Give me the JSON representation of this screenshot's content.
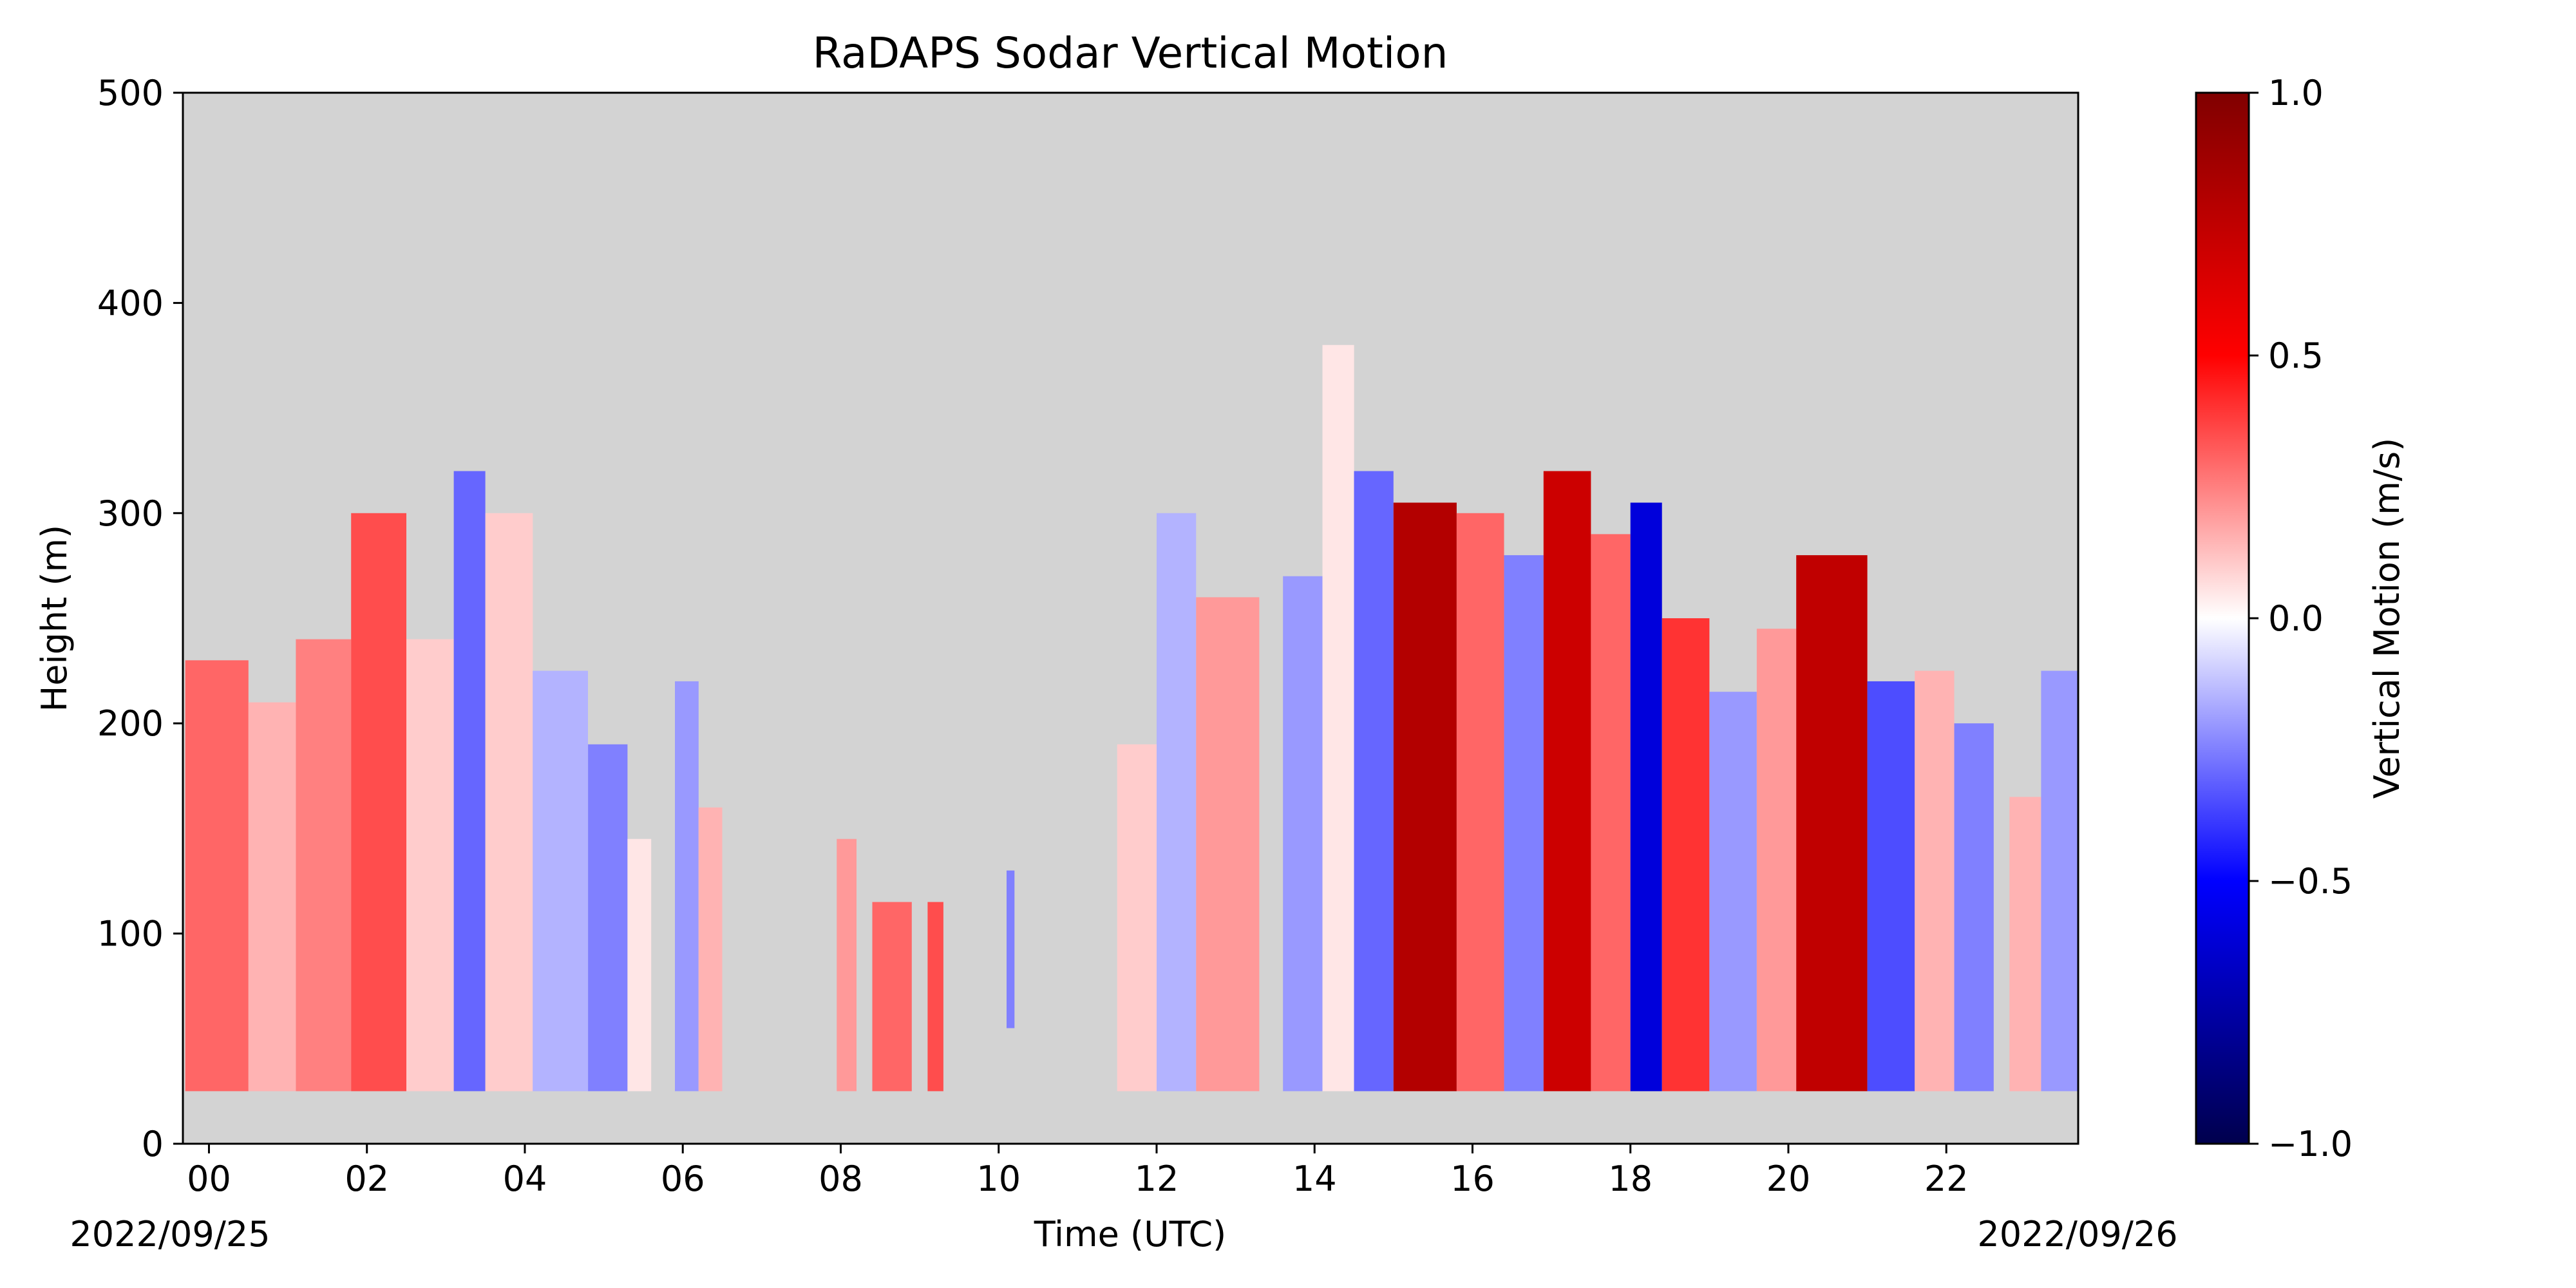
{
  "chart_data": {
    "type": "heatmap",
    "title": "RaDAPS Sodar Vertical Motion",
    "xlabel": "Time (UTC)",
    "ylabel": "Height (m)",
    "x_range_hours": [
      -0.33,
      23.67
    ],
    "ylim": [
      0,
      500
    ],
    "x_ticks": [
      0,
      2,
      4,
      6,
      8,
      10,
      12,
      14,
      16,
      18,
      20,
      22
    ],
    "x_tick_labels": [
      "00",
      "02",
      "04",
      "06",
      "08",
      "10",
      "12",
      "14",
      "16",
      "18",
      "20",
      "22"
    ],
    "y_ticks": [
      0,
      100,
      200,
      300,
      400,
      500
    ],
    "y_tick_labels": [
      "0",
      "100",
      "200",
      "300",
      "400",
      "500"
    ],
    "date_start": "2022/09/25",
    "date_end": "2022/09/26",
    "background_color": "#d3d3d3",
    "colorbar": {
      "label": "Vertical Motion (m/s)",
      "colormap": "seismic",
      "range": [
        -1.0,
        1.0
      ],
      "ticks": [
        -1.0,
        -0.5,
        0.0,
        0.5,
        1.0
      ],
      "tick_labels": [
        "−1.0",
        "−0.5",
        "0.0",
        "0.5",
        "1.0"
      ]
    },
    "data_base_height": 25,
    "columns": [
      {
        "t0": -0.3,
        "t1": 0.5,
        "top": 230,
        "v": 0.3
      },
      {
        "t0": 0.5,
        "t1": 1.1,
        "top": 210,
        "v": 0.15
      },
      {
        "t0": 1.1,
        "t1": 1.8,
        "top": 240,
        "v": 0.25
      },
      {
        "t0": 1.8,
        "t1": 2.5,
        "top": 300,
        "v": 0.35
      },
      {
        "t0": 2.5,
        "t1": 3.1,
        "top": 240,
        "v": 0.1
      },
      {
        "t0": 3.1,
        "t1": 3.5,
        "top": 320,
        "v": -0.3
      },
      {
        "t0": 3.5,
        "t1": 4.1,
        "top": 300,
        "v": 0.1
      },
      {
        "t0": 4.1,
        "t1": 4.8,
        "top": 225,
        "v": -0.15
      },
      {
        "t0": 4.8,
        "t1": 5.3,
        "top": 190,
        "v": -0.25
      },
      {
        "t0": 5.3,
        "t1": 5.6,
        "top": 145,
        "v": 0.05
      },
      {
        "t0": 5.9,
        "t1": 6.2,
        "top": 220,
        "v": -0.2
      },
      {
        "t0": 6.2,
        "t1": 6.5,
        "top": 160,
        "v": 0.15
      },
      {
        "t0": 7.95,
        "t1": 8.2,
        "top": 145,
        "v": 0.2
      },
      {
        "t0": 8.4,
        "t1": 8.9,
        "top": 115,
        "v": 0.3
      },
      {
        "t0": 9.1,
        "t1": 9.3,
        "top": 115,
        "v": 0.35
      },
      {
        "t0": 10.1,
        "t1": 10.2,
        "top": 130,
        "v": -0.25,
        "bottom": 55
      },
      {
        "t0": 11.5,
        "t1": 12.0,
        "top": 190,
        "v": 0.1
      },
      {
        "t0": 12.0,
        "t1": 12.5,
        "top": 300,
        "v": -0.15
      },
      {
        "t0": 12.5,
        "t1": 13.3,
        "top": 260,
        "v": 0.2
      },
      {
        "t0": 13.6,
        "t1": 14.1,
        "top": 270,
        "v": -0.2
      },
      {
        "t0": 14.1,
        "t1": 14.5,
        "top": 380,
        "v": 0.05
      },
      {
        "t0": 14.5,
        "t1": 15.0,
        "top": 320,
        "v": -0.3
      },
      {
        "t0": 15.0,
        "t1": 15.8,
        "top": 305,
        "v": 0.8
      },
      {
        "t0": 15.8,
        "t1": 16.4,
        "top": 300,
        "v": 0.3
      },
      {
        "t0": 16.4,
        "t1": 16.9,
        "top": 280,
        "v": -0.25
      },
      {
        "t0": 16.9,
        "t1": 17.5,
        "top": 320,
        "v": 0.7
      },
      {
        "t0": 17.5,
        "t1": 18.0,
        "top": 290,
        "v": 0.3
      },
      {
        "t0": 18.0,
        "t1": 18.4,
        "top": 305,
        "v": -0.6
      },
      {
        "t0": 18.4,
        "t1": 19.0,
        "top": 250,
        "v": 0.4
      },
      {
        "t0": 19.0,
        "t1": 19.6,
        "top": 215,
        "v": -0.2
      },
      {
        "t0": 19.6,
        "t1": 20.1,
        "top": 245,
        "v": 0.2
      },
      {
        "t0": 20.1,
        "t1": 21.0,
        "top": 280,
        "v": 0.75
      },
      {
        "t0": 21.0,
        "t1": 21.6,
        "top": 220,
        "v": -0.35
      },
      {
        "t0": 21.6,
        "t1": 22.1,
        "top": 225,
        "v": 0.15
      },
      {
        "t0": 22.1,
        "t1": 22.6,
        "top": 200,
        "v": -0.25
      },
      {
        "t0": 22.8,
        "t1": 23.2,
        "top": 165,
        "v": 0.15
      },
      {
        "t0": 23.2,
        "t1": 23.67,
        "top": 225,
        "v": -0.2
      }
    ]
  }
}
